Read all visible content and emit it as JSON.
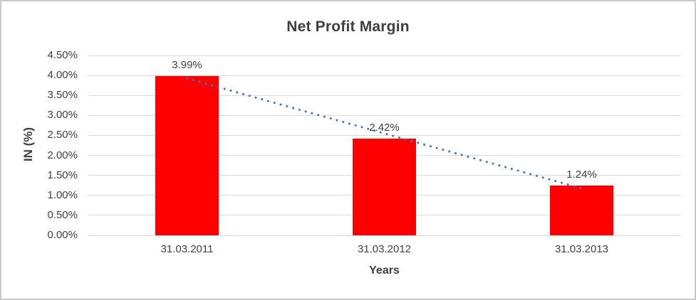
{
  "chart_data": {
    "type": "bar",
    "title": "Net Profit Margin",
    "xlabel": "Years",
    "ylabel": "IN (%)",
    "categories": [
      "31.03.2011",
      "31.03.2012",
      "31.03.2013"
    ],
    "values": [
      3.99,
      2.42,
      1.24
    ],
    "data_labels": [
      "3.99%",
      "2.42%",
      "1.24%"
    ],
    "ylim": [
      0,
      4.5
    ],
    "ytick_step": 0.5,
    "ytick_labels": [
      "0.00%",
      "0.50%",
      "1.00%",
      "1.50%",
      "2.00%",
      "2.50%",
      "3.00%",
      "3.50%",
      "4.00%",
      "4.50%"
    ],
    "grid": true,
    "legend": "none",
    "bar_color": "#FF0000",
    "trendline": {
      "type": "linear",
      "style": "dotted",
      "color": "#4472C4"
    }
  },
  "colors": {
    "bar": "#FF0000",
    "trendline": "#4472C4",
    "gridline": "#D9D9D9",
    "text": "#404040",
    "title_text": "#3f3f3f",
    "frame_border": "#C9C9C9"
  }
}
